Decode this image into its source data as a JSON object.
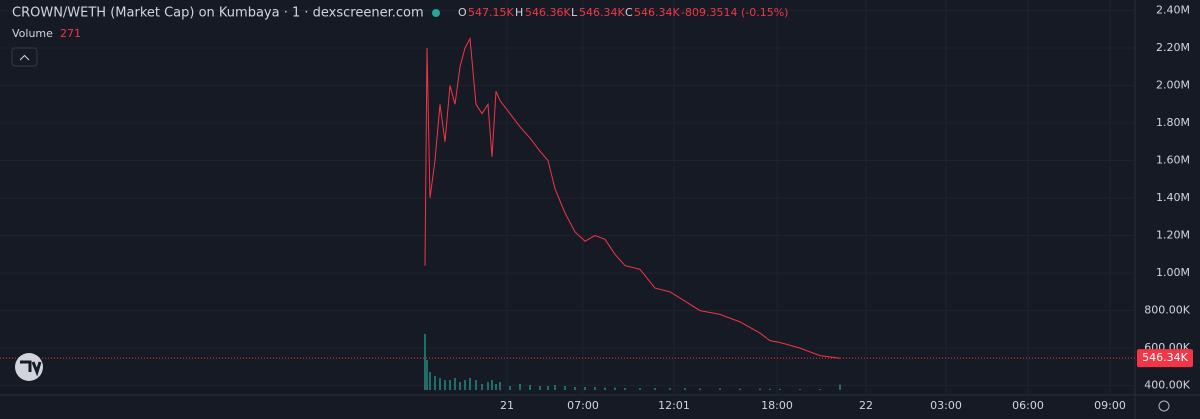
{
  "chart_data": {
    "type": "line",
    "title": "CROWN/WETH (Market Cap) on Kumbaya · 1 · dexscreener.com",
    "legend": {
      "o_label": "O",
      "o": "547.15K",
      "h_label": "H",
      "h": "546.36K",
      "l_label": "L",
      "l": "546.34K",
      "c_label": "C",
      "c": "546.34K",
      "change": "-809.3514 (-0.15%)",
      "volume_label": "Volume",
      "volume": "271"
    },
    "last_price": {
      "value": 546340,
      "label": "546.34K"
    },
    "x": [
      -8.2,
      -8,
      -7.7,
      -7.2,
      -6.7,
      -6.2,
      -5.7,
      -5.2,
      -4.7,
      -4.2,
      -3.7,
      -3.1,
      -2.5,
      -1.9,
      -1.5,
      -1.1,
      -0.7,
      0.3,
      1.3,
      2.3,
      3.3,
      4.1,
      4.8,
      5.8,
      6.8,
      7.8,
      8.8,
      9.8,
      10.8,
      11.8,
      13.3,
      14.8,
      16.3,
      17.8,
      19.3,
      21.3,
      23.3,
      25.3,
      26.3,
      27.3,
      29.3,
      31.3,
      33.3
    ],
    "series": [
      {
        "name": "Market Cap",
        "color": "#f23645",
        "values": [
          1040000,
          2200000,
          1400000,
          1600000,
          1900000,
          1700000,
          2000000,
          1900000,
          2100000,
          2200000,
          2250000,
          1900000,
          1850000,
          1900000,
          1620000,
          1970000,
          1920000,
          1850000,
          1780000,
          1720000,
          1650000,
          1600000,
          1450000,
          1320000,
          1220000,
          1170000,
          1200000,
          1180000,
          1100000,
          1040000,
          1020000,
          920000,
          900000,
          850000,
          800000,
          780000,
          740000,
          680000,
          640000,
          630000,
          600000,
          560000,
          546000
        ]
      },
      {
        "name": "Volume",
        "color": "#26a69a",
        "axis": "y2",
        "values": [
          2800,
          1500,
          900,
          700,
          600,
          500,
          500,
          600,
          400,
          500,
          600,
          500,
          300,
          400,
          500,
          300,
          400,
          200,
          300,
          250,
          200,
          200,
          250,
          200,
          150,
          150,
          150,
          120,
          120,
          100,
          100,
          100,
          90,
          90,
          80,
          80,
          70,
          70,
          60,
          60,
          50,
          50,
          271
        ]
      }
    ],
    "xlim": [
      -50.7,
      62.8
    ],
    "xticks": [
      {
        "value": 0,
        "label": "21"
      },
      {
        "value": 7.6,
        "label": "07:00"
      },
      {
        "value": 16.7,
        "label": "12:01"
      },
      {
        "value": 27,
        "label": "18:00"
      },
      {
        "value": 35.9,
        "label": "22"
      },
      {
        "value": 43.9,
        "label": "03:00"
      },
      {
        "value": 52.1,
        "label": "06:00"
      },
      {
        "value": 60.3,
        "label": "09:00"
      }
    ],
    "ylim": [
      350000,
      2456000
    ],
    "yticks": [
      {
        "value": 400000,
        "label": "400.00K"
      },
      {
        "value": 600000,
        "label": "600.00K"
      },
      {
        "value": 800000,
        "label": "800.00K"
      },
      {
        "value": 1000000,
        "label": "1.00M"
      },
      {
        "value": 1200000,
        "label": "1.20M"
      },
      {
        "value": 1400000,
        "label": "1.40M"
      },
      {
        "value": 1600000,
        "label": "1.60M"
      },
      {
        "value": 1800000,
        "label": "1.80M"
      },
      {
        "value": 2000000,
        "label": "2.00M"
      },
      {
        "value": 2200000,
        "label": "2.20M"
      },
      {
        "value": 2400000,
        "label": "2.40M"
      }
    ],
    "y2lim": [
      0,
      3000
    ],
    "grid": true
  }
}
